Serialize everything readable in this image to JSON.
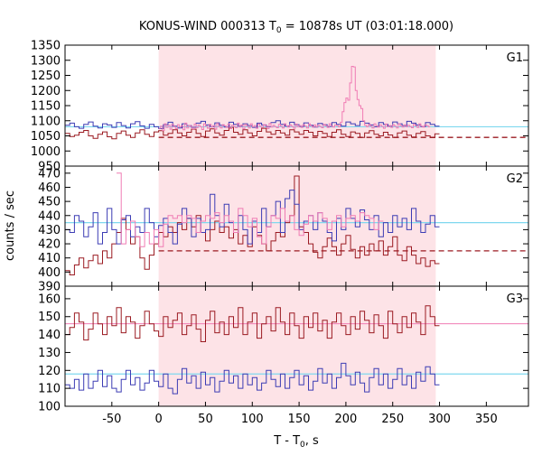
{
  "chart_data": {
    "type": "line",
    "title": {
      "main": "KONUS-WIND 000313 T",
      "sub": "0",
      "rest": " = 10878s UT (03:01:18.000)"
    },
    "xlabel": {
      "main": "T - T",
      "sub": "0",
      "rest": ", s"
    },
    "ylabel": "counts / sec",
    "xlim": [
      -100,
      395
    ],
    "xticks": [
      -50,
      0,
      50,
      100,
      150,
      200,
      250,
      300,
      350
    ],
    "highlight_interval": [
      0,
      296
    ],
    "colors": {
      "dark_red": "#9b1b22",
      "blue": "#3c3cb4",
      "pink": "#f07cb4",
      "cyan": "#7fd8ef",
      "shade": "#fde3e7"
    },
    "panels": [
      {
        "name": "G1",
        "ylim": [
          950,
          1350
        ],
        "yticks": [
          950,
          1000,
          1050,
          1100,
          1150,
          1200,
          1250,
          1300,
          1350
        ],
        "bin_width": 5,
        "series": [
          {
            "color": "dark_red",
            "values": [
              1058,
              1048,
              1052,
              1062,
              1068,
              1050,
              1042,
              1055,
              1063,
              1047,
              1040,
              1058,
              1066,
              1052,
              1045,
              1060,
              1070,
              1055,
              1048,
              1063,
              1067,
              1052,
              1058,
              1070,
              1060,
              1050,
              1062,
              1072,
              1058,
              1048,
              1066,
              1073,
              1060,
              1052,
              1068,
              1078,
              1062,
              1055,
              1070,
              1060,
              1050,
              1065,
              1075,
              1063,
              1055,
              1068,
              1060,
              1052,
              1070,
              1063,
              1055,
              1068,
              1062,
              1050,
              1065,
              1058,
              1048,
              1062,
              1070,
              1055,
              1048,
              1063,
              1058,
              1045,
              1060,
              1067,
              1055,
              1050,
              1062,
              1053,
              1045,
              1060,
              1066,
              1052,
              1046,
              1058,
              1064,
              1050,
              1044,
              1057
            ]
          },
          {
            "color": "blue",
            "values": [
              1085,
              1092,
              1080,
              1075,
              1088,
              1096,
              1082,
              1076,
              1090,
              1086,
              1078,
              1094,
              1084,
              1076,
              1090,
              1097,
              1083,
              1075,
              1088,
              1080,
              1074,
              1087,
              1095,
              1082,
              1076,
              1090,
              1084,
              1078,
              1092,
              1098,
              1086,
              1080,
              1093,
              1085,
              1079,
              1095,
              1088,
              1082,
              1090,
              1084,
              1078,
              1092,
              1086,
              1080,
              1094,
              1100,
              1088,
              1082,
              1095,
              1087,
              1081,
              1093,
              1085,
              1079,
              1091,
              1087,
              1081,
              1094,
              1088,
              1082,
              1096,
              1090,
              1084,
              1098,
              1092,
              1086,
              1080,
              1094,
              1088,
              1082,
              1096,
              1090,
              1084,
              1098,
              1092,
              1086,
              1080,
              1094,
              1088,
              1082
            ]
          },
          {
            "color": "pink",
            "x_start": 0,
            "bin_width": 2,
            "values": [
              1075,
              1082,
              1068,
              1090,
              1078,
              1085,
              1072,
              1088,
              1080,
              1074,
              1087,
              1079,
              1083,
              1070,
              1092,
              1076,
              1084,
              1081,
              1073,
              1089,
              1077,
              1086,
              1080,
              1071,
              1090,
              1082,
              1075,
              1088,
              1079,
              1084,
              1072,
              1091,
              1080,
              1076,
              1087,
              1083,
              1078,
              1089,
              1074,
              1085,
              1081,
              1077,
              1092,
              1079,
              1086,
              1073,
              1088,
              1082,
              1076,
              1090,
              1080,
              1084,
              1075,
              1089,
              1081,
              1078,
              1087,
              1083,
              1074,
              1091,
              1079,
              1085,
              1080,
              1077,
              1088,
              1082,
              1076,
              1090,
              1083,
              1079,
              1086,
              1081,
              1075,
              1089,
              1080,
              1084,
              1078,
              1087,
              1082,
              1076,
              1090,
              1083,
              1079,
              1086,
              1080,
              1085,
              1081,
              1077,
              1088,
              1083,
              1078,
              1090,
              1082,
              1079,
              1086,
              1084,
              1080,
              1095,
              1130,
              1160,
              1175,
              1168,
              1225,
              1280,
              1278,
              1200,
              1170,
              1150,
              1140,
              1100,
              1085,
              1080,
              1088,
              1082,
              1076,
              1090,
              1083,
              1079,
              1086,
              1081,
              1075,
              1089,
              1080,
              1084,
              1078,
              1087,
              1082,
              1076,
              1090,
              1083,
              1079,
              1086,
              1080,
              1085,
              1081,
              1077,
              1088,
              1083,
              1078,
              1090,
              1082,
              1079,
              1086,
              1084,
              1080
            ]
          }
        ],
        "backgrounds": [
          {
            "color": "cyan",
            "value": 1080,
            "style": "solid"
          },
          {
            "color": "dark_red",
            "value": 1045,
            "style": "dashed",
            "x_range": [
              0,
              395
            ]
          }
        ]
      },
      {
        "name": "G2",
        "ylim": [
          390,
          475
        ],
        "yticks": [
          390,
          400,
          410,
          420,
          430,
          440,
          450,
          460,
          470
        ],
        "bin_width": 5,
        "series": [
          {
            "color": "dark_red",
            "values": [
              401,
              398,
              405,
              410,
              403,
              408,
              412,
              406,
              415,
              410,
              420,
              428,
              438,
              430,
              420,
              425,
              410,
              402,
              412,
              420,
              428,
              425,
              432,
              428,
              435,
              430,
              438,
              432,
              440,
              428,
              422,
              430,
              436,
              428,
              432,
              424,
              430,
              420,
              426,
              418,
              432,
              426,
              420,
              415,
              422,
              428,
              425,
              435,
              440,
              468,
              432,
              428,
              420,
              414,
              410,
              418,
              424,
              418,
              412,
              420,
              426,
              416,
              410,
              418,
              412,
              420,
              415,
              422,
              412,
              418,
              425,
              412,
              408,
              418,
              412,
              406,
              410,
              404,
              408,
              406
            ]
          },
          {
            "color": "blue",
            "values": [
              430,
              428,
              440,
              436,
              425,
              432,
              442,
              420,
              428,
              445,
              430,
              420,
              437,
              440,
              425,
              432,
              428,
              445,
              435,
              425,
              433,
              438,
              428,
              420,
              434,
              445,
              438,
              425,
              438,
              428,
              430,
              455,
              440,
              432,
              448,
              435,
              428,
              440,
              430,
              420,
              436,
              428,
              445,
              432,
              440,
              450,
              428,
              452,
              458,
              448,
              430,
              436,
              440,
              430,
              442,
              436,
              428,
              422,
              438,
              430,
              445,
              438,
              432,
              444,
              437,
              430,
              440,
              425,
              435,
              428,
              440,
              432,
              438,
              430,
              445,
              436,
              428,
              434,
              440,
              432
            ]
          },
          {
            "color": "pink",
            "x_start": -45,
            "bin_width": 5,
            "values": [
              470,
              420,
              430,
              436,
              425,
              418,
              428,
              420,
              430,
              418,
              434,
              440,
              438,
              440,
              435,
              440,
              438,
              428,
              436,
              440,
              438,
              442,
              435,
              440,
              436,
              428,
              445,
              440,
              432,
              438,
              425,
              420,
              432,
              440,
              438,
              445,
              436,
              440,
              430,
              426,
              434,
              440,
              436,
              442,
              438,
              430,
              436,
              440,
              432,
              438,
              440,
              436,
              442,
              440,
              438,
              430,
              436
            ]
          }
        ],
        "backgrounds": [
          {
            "color": "cyan",
            "value": 435,
            "style": "solid"
          },
          {
            "color": "dark_red",
            "value": 415,
            "style": "dashed",
            "x_range": [
              0,
              395
            ]
          }
        ]
      },
      {
        "name": "G3",
        "ylim": [
          100,
          167
        ],
        "yticks": [
          100,
          110,
          120,
          130,
          140,
          150,
          160
        ],
        "bin_width": 5,
        "series": [
          {
            "color": "dark_red",
            "values": [
              140,
              144,
              152,
              147,
              137,
              143,
              152,
              146,
              140,
              150,
              145,
              155,
              141,
              150,
              147,
              138,
              145,
              153,
              146,
              142,
              139,
              150,
              144,
              148,
              152,
              140,
              145,
              151,
              143,
              136,
              148,
              153,
              141,
              147,
              140,
              150,
              144,
              155,
              140,
              147,
              152,
              138,
              146,
              150,
              142,
              155,
              147,
              140,
              152,
              145,
              138,
              150,
              144,
              152,
              142,
              148,
              138,
              147,
              152,
              145,
              140,
              150,
              143,
              153,
              148,
              141,
              151,
              145,
              138,
              153,
              146,
              141,
              150,
              144,
              152,
              147,
              140,
              156,
              150,
              145
            ]
          },
          {
            "color": "blue",
            "values": [
              112,
              110,
              115,
              109,
              118,
              110,
              114,
              120,
              111,
              117,
              110,
              108,
              115,
              120,
              112,
              116,
              109,
              113,
              120,
              114,
              111,
              118,
              110,
              107,
              115,
              121,
              113,
              117,
              110,
              119,
              112,
              116,
              108,
              114,
              120,
              113,
              117,
              110,
              118,
              112,
              116,
              109,
              113,
              120,
              115,
              111,
              118,
              110,
              116,
              120,
              112,
              117,
              109,
              114,
              121,
              113,
              118,
              110,
              116,
              124,
              117,
              112,
              119,
              113,
              108,
              116,
              121,
              112,
              118,
              110,
              115,
              121,
              112,
              117,
              110,
              119,
              114,
              122,
              118,
              112
            ]
          }
        ],
        "backgrounds": [
          {
            "color": "dark_red",
            "value": 146,
            "style": "solid_pink"
          },
          {
            "color": "cyan",
            "value": 118,
            "style": "solid"
          }
        ]
      }
    ]
  }
}
